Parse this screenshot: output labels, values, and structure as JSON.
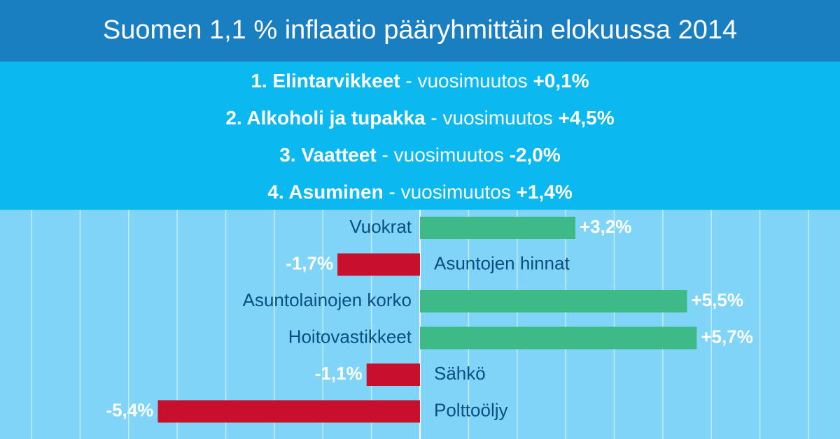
{
  "header": {
    "title": "Suomen 1,1 % inflaatio pääryhmittäin elokuussa 2014",
    "groups": [
      {
        "name": "1. Elintarvikkeet",
        "label": "- vuosimuutos",
        "change": "+0,1%"
      },
      {
        "name": "2. Alkoholi ja tupakka",
        "label": "- vuosimuutos",
        "change": "+4,5%"
      },
      {
        "name": "3. Vaatteet",
        "label": "- vuosimuutos",
        "change": "-2,0%"
      },
      {
        "name": "4. Asuminen",
        "label": "- vuosimuutos",
        "change": "+1,4%"
      }
    ]
  },
  "chart_data": {
    "type": "hbar",
    "categories": [
      "Vuokrat",
      "Asuntojen hinnat",
      "Asuntolainojen korko",
      "Hoitovastikkeet",
      "Sähkö",
      "Polttoöljy"
    ],
    "values": [
      3.2,
      -1.7,
      5.5,
      5.7,
      -1.1,
      -5.4
    ],
    "value_labels": [
      "+3,2%",
      "-1,7%",
      "+5,5%",
      "+5,7%",
      "-1,1%",
      "-5,4%"
    ],
    "positive_color": "#3dba85",
    "negative_color": "#c8102e",
    "xlim": [
      -8.65,
      8.65
    ],
    "xticks": [
      -8,
      -7,
      -6,
      -5,
      -4,
      -3,
      -2,
      -1,
      0,
      1,
      2,
      3,
      4,
      5,
      6,
      7,
      8
    ],
    "grid": true
  }
}
